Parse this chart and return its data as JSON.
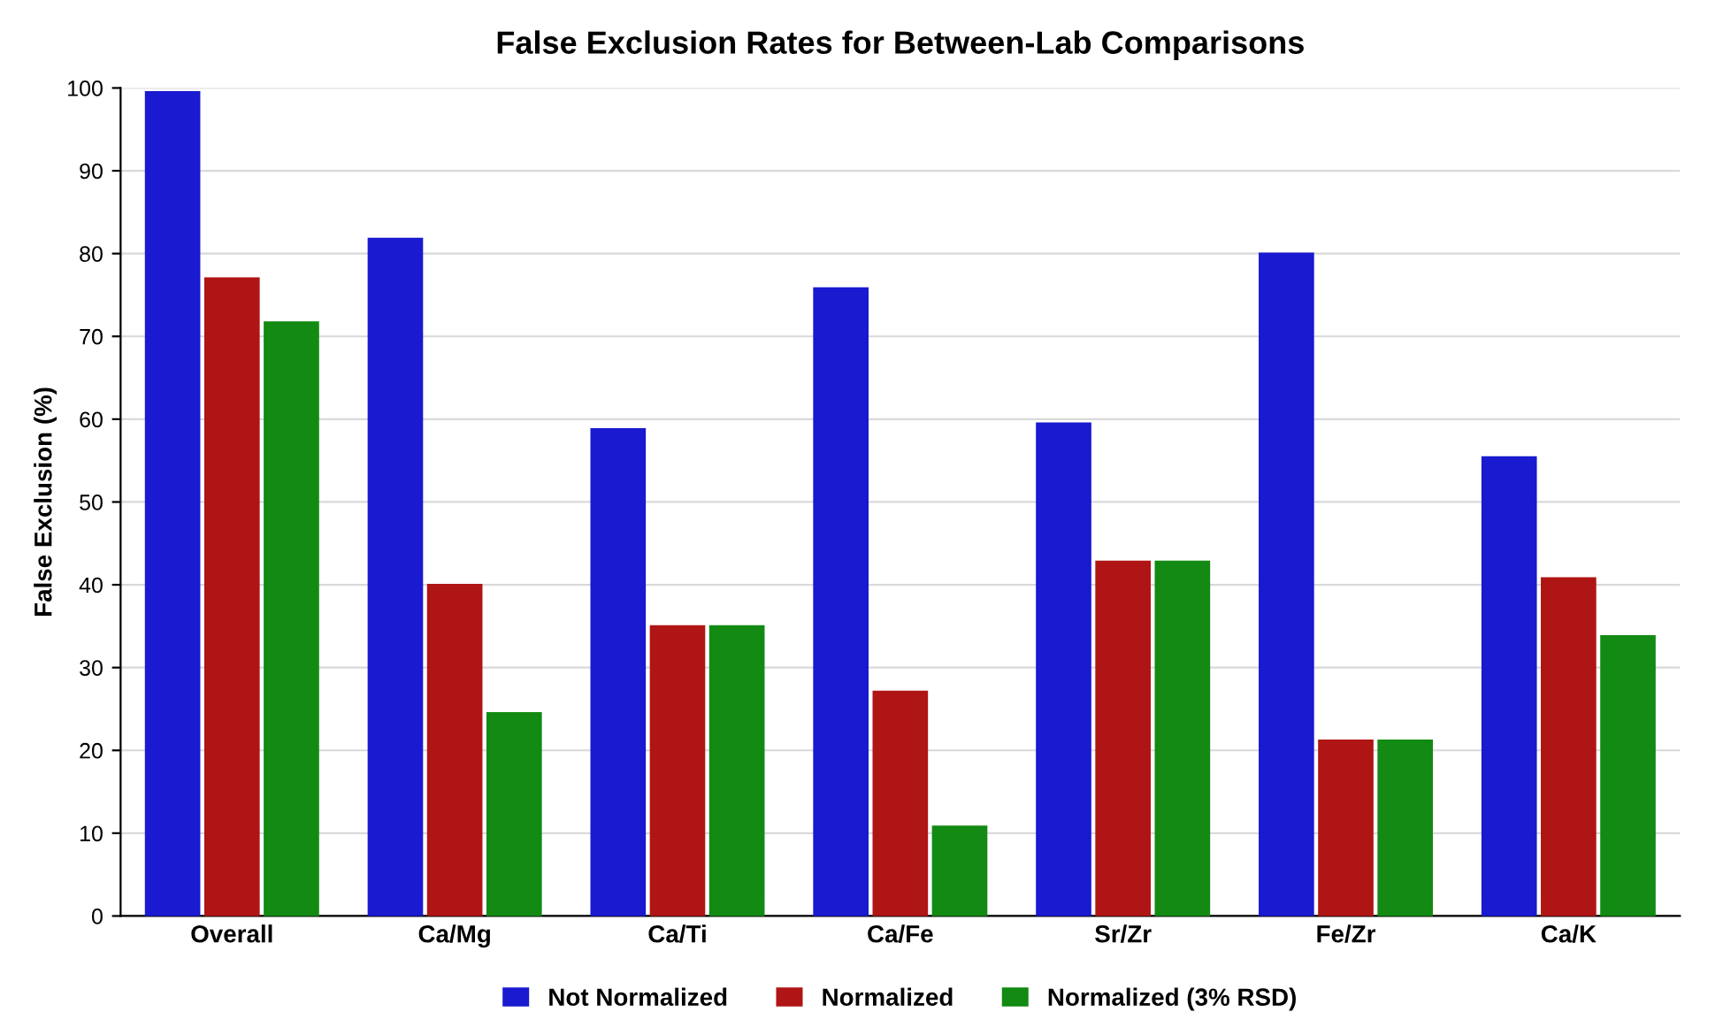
{
  "chart_data": {
    "type": "bar",
    "title": "False Exclusion Rates for Between-Lab Comparisons",
    "ylabel": "False Exclusion (%)",
    "categories": [
      "Overall",
      "Ca/Mg",
      "Ca/Ti",
      "Ca/Fe",
      "Sr/Zr",
      "Fe/Zr",
      "Ca/K"
    ],
    "series": [
      {
        "name": "Not Normalized",
        "color": "#1a1ad0",
        "values": [
          99.5,
          81.8,
          58.8,
          75.8,
          59.5,
          80,
          55.4
        ]
      },
      {
        "name": "Normalized",
        "color": "#b01515",
        "values": [
          77,
          40,
          35,
          27.1,
          42.8,
          21.2,
          40.8
        ]
      },
      {
        "name": "Normalized (3% RSD)",
        "color": "#138a13",
        "values": [
          71.7,
          24.5,
          35,
          10.8,
          42.8,
          21.2,
          33.8
        ]
      }
    ],
    "ylim": [
      0,
      100
    ],
    "yticks": [
      0,
      10,
      20,
      30,
      40,
      50,
      60,
      70,
      80,
      90,
      100
    ],
    "grid": "y",
    "legend": "bottom"
  }
}
